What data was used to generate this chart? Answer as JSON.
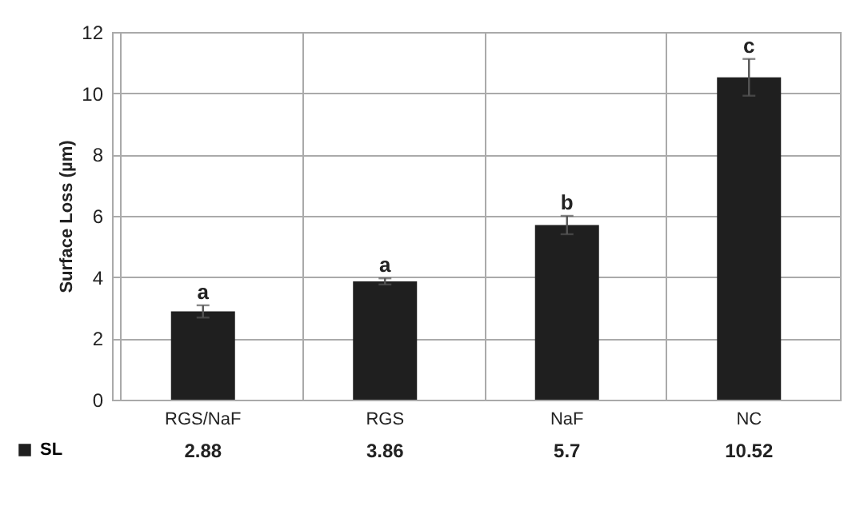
{
  "chart_data": {
    "type": "bar",
    "ylabel": "Surface Loss (µm)",
    "categories": [
      "RGS/NaF",
      "RGS",
      "NaF",
      "NC"
    ],
    "series": [
      {
        "name": "SL",
        "color": "#1f1f1f",
        "values": [
          2.88,
          3.86,
          5.7,
          10.52
        ],
        "errors": [
          0.2,
          0.1,
          0.3,
          0.6
        ]
      }
    ],
    "data_labels": true,
    "legend": "bottom left",
    "ylim": [
      0,
      12
    ],
    "yticks": [
      0,
      2,
      4,
      6,
      8,
      10,
      12
    ],
    "grid": true,
    "annotations": [
      "a",
      "a",
      "b",
      "c"
    ]
  }
}
